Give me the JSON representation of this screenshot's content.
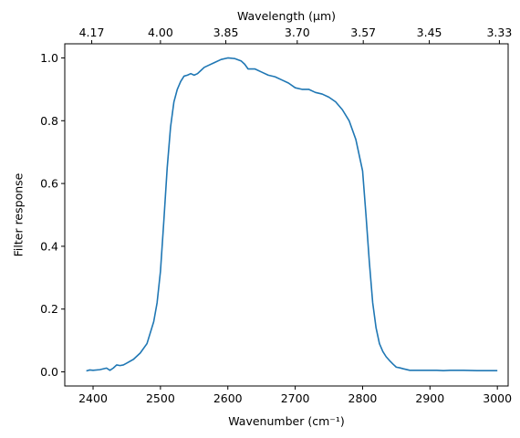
{
  "chart_data": {
    "type": "line",
    "xlabel": "Wavenumber (cm⁻¹)",
    "ylabel": "Filter response",
    "top_xlabel": "Wavelength (μm)",
    "xlim": [
      2358,
      3016
    ],
    "ylim": [
      -0.045,
      1.045
    ],
    "x_ticks": [
      2400,
      2500,
      2600,
      2700,
      2800,
      2900,
      3000
    ],
    "y_ticks": [
      0.0,
      0.2,
      0.4,
      0.6,
      0.8,
      1.0
    ],
    "x_tick_labels": [
      "2400",
      "2500",
      "2600",
      "2700",
      "2800",
      "2900",
      "3000"
    ],
    "y_tick_labels": [
      "0.0",
      "0.2",
      "0.4",
      "0.6",
      "0.8",
      "1.0"
    ],
    "top_ticks": [
      {
        "wavenumber": 2398,
        "label": "4.17"
      },
      {
        "wavenumber": 2500,
        "label": "4.00"
      },
      {
        "wavenumber": 2597,
        "label": "3.85"
      },
      {
        "wavenumber": 2703,
        "label": "3.70"
      },
      {
        "wavenumber": 2801,
        "label": "3.57"
      },
      {
        "wavenumber": 2899,
        "label": "3.45"
      },
      {
        "wavenumber": 3003,
        "label": "3.33"
      }
    ],
    "grid": false,
    "series": [
      {
        "color": "#1f77b4",
        "x": [
          2390,
          2395,
          2400,
          2410,
          2420,
          2425,
          2430,
          2435,
          2440,
          2445,
          2450,
          2460,
          2470,
          2480,
          2490,
          2495,
          2500,
          2505,
          2510,
          2515,
          2520,
          2525,
          2530,
          2535,
          2540,
          2545,
          2550,
          2555,
          2560,
          2565,
          2570,
          2580,
          2590,
          2600,
          2610,
          2620,
          2625,
          2630,
          2640,
          2650,
          2660,
          2670,
          2680,
          2690,
          2700,
          2710,
          2720,
          2730,
          2740,
          2750,
          2760,
          2770,
          2780,
          2790,
          2800,
          2805,
          2810,
          2815,
          2820,
          2825,
          2830,
          2835,
          2840,
          2845,
          2850,
          2855,
          2860,
          2870,
          2880,
          2890,
          2900,
          2910,
          2920,
          2930,
          2950,
          2970,
          3000
        ],
        "y": [
          0.003,
          0.006,
          0.005,
          0.007,
          0.012,
          0.005,
          0.012,
          0.022,
          0.02,
          0.022,
          0.028,
          0.04,
          0.06,
          0.09,
          0.16,
          0.22,
          0.32,
          0.48,
          0.65,
          0.78,
          0.86,
          0.9,
          0.925,
          0.942,
          0.945,
          0.95,
          0.945,
          0.95,
          0.96,
          0.97,
          0.975,
          0.985,
          0.995,
          1.0,
          0.998,
          0.99,
          0.98,
          0.965,
          0.965,
          0.955,
          0.945,
          0.94,
          0.93,
          0.92,
          0.905,
          0.9,
          0.9,
          0.89,
          0.885,
          0.875,
          0.86,
          0.835,
          0.8,
          0.74,
          0.64,
          0.5,
          0.35,
          0.22,
          0.14,
          0.09,
          0.065,
          0.048,
          0.036,
          0.025,
          0.015,
          0.013,
          0.01,
          0.005,
          0.005,
          0.005,
          0.005,
          0.005,
          0.004,
          0.005,
          0.005,
          0.004,
          0.004
        ]
      }
    ]
  }
}
